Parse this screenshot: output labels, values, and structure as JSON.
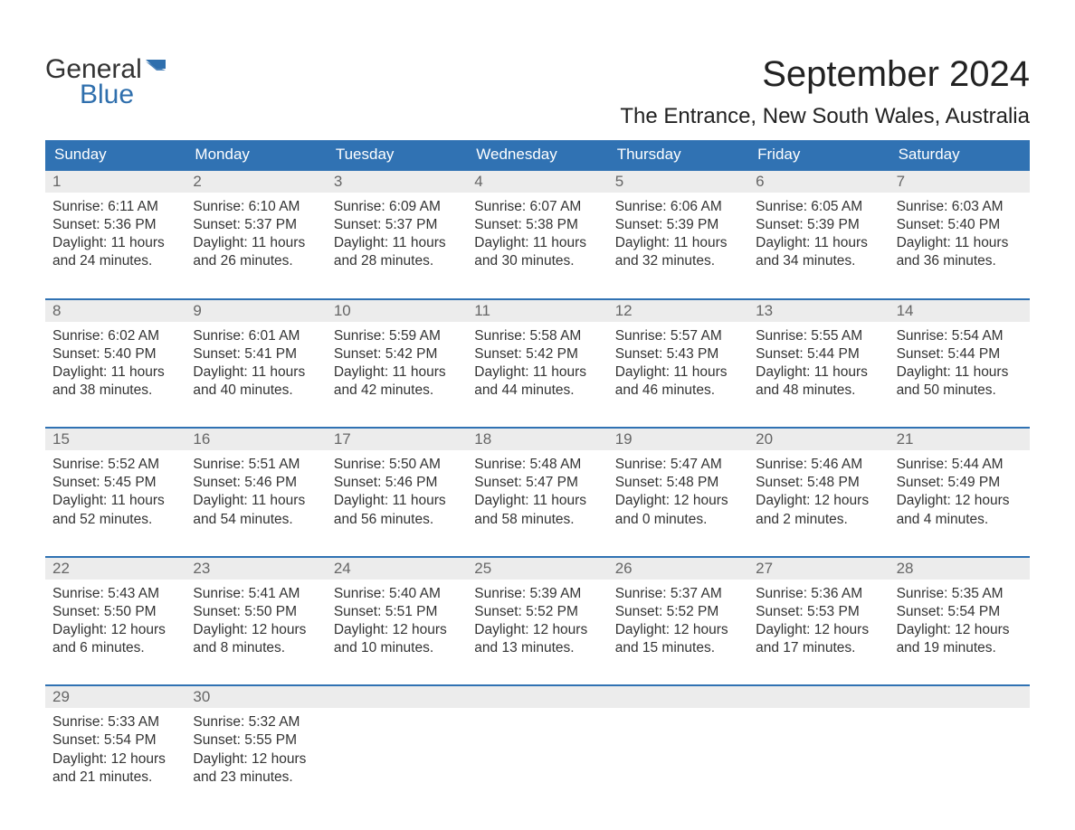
{
  "logo": {
    "word1": "General",
    "word2": "Blue",
    "flag_color": "#2f6fad"
  },
  "title": "September 2024",
  "location": "The Entrance, New South Wales, Australia",
  "colors": {
    "header_bg": "#3072b3",
    "header_text": "#ffffff",
    "daynum_bg": "#ececec",
    "daynum_text": "#666666",
    "body_text": "#333333",
    "week_border": "#3072b3",
    "logo_dark": "#333333",
    "logo_blue": "#2f6fad",
    "background": "#ffffff"
  },
  "typography": {
    "title_fontsize": 40,
    "location_fontsize": 24,
    "dow_fontsize": 17,
    "daynum_fontsize": 17,
    "body_fontsize": 15.5,
    "logo_fontsize": 30
  },
  "labels": {
    "sunrise": "Sunrise:",
    "sunset": "Sunset:",
    "daylight_prefix": "Daylight:",
    "hours_word": "hours",
    "and_word": "and",
    "minutes_word": "minutes."
  },
  "days_of_week": [
    "Sunday",
    "Monday",
    "Tuesday",
    "Wednesday",
    "Thursday",
    "Friday",
    "Saturday"
  ],
  "calendar": {
    "type": "table",
    "columns": 7,
    "weeks": [
      [
        {
          "n": 1,
          "sunrise": "6:11 AM",
          "sunset": "5:36 PM",
          "dl_h": 11,
          "dl_m": 24
        },
        {
          "n": 2,
          "sunrise": "6:10 AM",
          "sunset": "5:37 PM",
          "dl_h": 11,
          "dl_m": 26
        },
        {
          "n": 3,
          "sunrise": "6:09 AM",
          "sunset": "5:37 PM",
          "dl_h": 11,
          "dl_m": 28
        },
        {
          "n": 4,
          "sunrise": "6:07 AM",
          "sunset": "5:38 PM",
          "dl_h": 11,
          "dl_m": 30
        },
        {
          "n": 5,
          "sunrise": "6:06 AM",
          "sunset": "5:39 PM",
          "dl_h": 11,
          "dl_m": 32
        },
        {
          "n": 6,
          "sunrise": "6:05 AM",
          "sunset": "5:39 PM",
          "dl_h": 11,
          "dl_m": 34
        },
        {
          "n": 7,
          "sunrise": "6:03 AM",
          "sunset": "5:40 PM",
          "dl_h": 11,
          "dl_m": 36
        }
      ],
      [
        {
          "n": 8,
          "sunrise": "6:02 AM",
          "sunset": "5:40 PM",
          "dl_h": 11,
          "dl_m": 38
        },
        {
          "n": 9,
          "sunrise": "6:01 AM",
          "sunset": "5:41 PM",
          "dl_h": 11,
          "dl_m": 40
        },
        {
          "n": 10,
          "sunrise": "5:59 AM",
          "sunset": "5:42 PM",
          "dl_h": 11,
          "dl_m": 42
        },
        {
          "n": 11,
          "sunrise": "5:58 AM",
          "sunset": "5:42 PM",
          "dl_h": 11,
          "dl_m": 44
        },
        {
          "n": 12,
          "sunrise": "5:57 AM",
          "sunset": "5:43 PM",
          "dl_h": 11,
          "dl_m": 46
        },
        {
          "n": 13,
          "sunrise": "5:55 AM",
          "sunset": "5:44 PM",
          "dl_h": 11,
          "dl_m": 48
        },
        {
          "n": 14,
          "sunrise": "5:54 AM",
          "sunset": "5:44 PM",
          "dl_h": 11,
          "dl_m": 50
        }
      ],
      [
        {
          "n": 15,
          "sunrise": "5:52 AM",
          "sunset": "5:45 PM",
          "dl_h": 11,
          "dl_m": 52
        },
        {
          "n": 16,
          "sunrise": "5:51 AM",
          "sunset": "5:46 PM",
          "dl_h": 11,
          "dl_m": 54
        },
        {
          "n": 17,
          "sunrise": "5:50 AM",
          "sunset": "5:46 PM",
          "dl_h": 11,
          "dl_m": 56
        },
        {
          "n": 18,
          "sunrise": "5:48 AM",
          "sunset": "5:47 PM",
          "dl_h": 11,
          "dl_m": 58
        },
        {
          "n": 19,
          "sunrise": "5:47 AM",
          "sunset": "5:48 PM",
          "dl_h": 12,
          "dl_m": 0
        },
        {
          "n": 20,
          "sunrise": "5:46 AM",
          "sunset": "5:48 PM",
          "dl_h": 12,
          "dl_m": 2
        },
        {
          "n": 21,
          "sunrise": "5:44 AM",
          "sunset": "5:49 PM",
          "dl_h": 12,
          "dl_m": 4
        }
      ],
      [
        {
          "n": 22,
          "sunrise": "5:43 AM",
          "sunset": "5:50 PM",
          "dl_h": 12,
          "dl_m": 6
        },
        {
          "n": 23,
          "sunrise": "5:41 AM",
          "sunset": "5:50 PM",
          "dl_h": 12,
          "dl_m": 8
        },
        {
          "n": 24,
          "sunrise": "5:40 AM",
          "sunset": "5:51 PM",
          "dl_h": 12,
          "dl_m": 10
        },
        {
          "n": 25,
          "sunrise": "5:39 AM",
          "sunset": "5:52 PM",
          "dl_h": 12,
          "dl_m": 13
        },
        {
          "n": 26,
          "sunrise": "5:37 AM",
          "sunset": "5:52 PM",
          "dl_h": 12,
          "dl_m": 15
        },
        {
          "n": 27,
          "sunrise": "5:36 AM",
          "sunset": "5:53 PM",
          "dl_h": 12,
          "dl_m": 17
        },
        {
          "n": 28,
          "sunrise": "5:35 AM",
          "sunset": "5:54 PM",
          "dl_h": 12,
          "dl_m": 19
        }
      ],
      [
        {
          "n": 29,
          "sunrise": "5:33 AM",
          "sunset": "5:54 PM",
          "dl_h": 12,
          "dl_m": 21
        },
        {
          "n": 30,
          "sunrise": "5:32 AM",
          "sunset": "5:55 PM",
          "dl_h": 12,
          "dl_m": 23
        },
        null,
        null,
        null,
        null,
        null
      ]
    ]
  }
}
